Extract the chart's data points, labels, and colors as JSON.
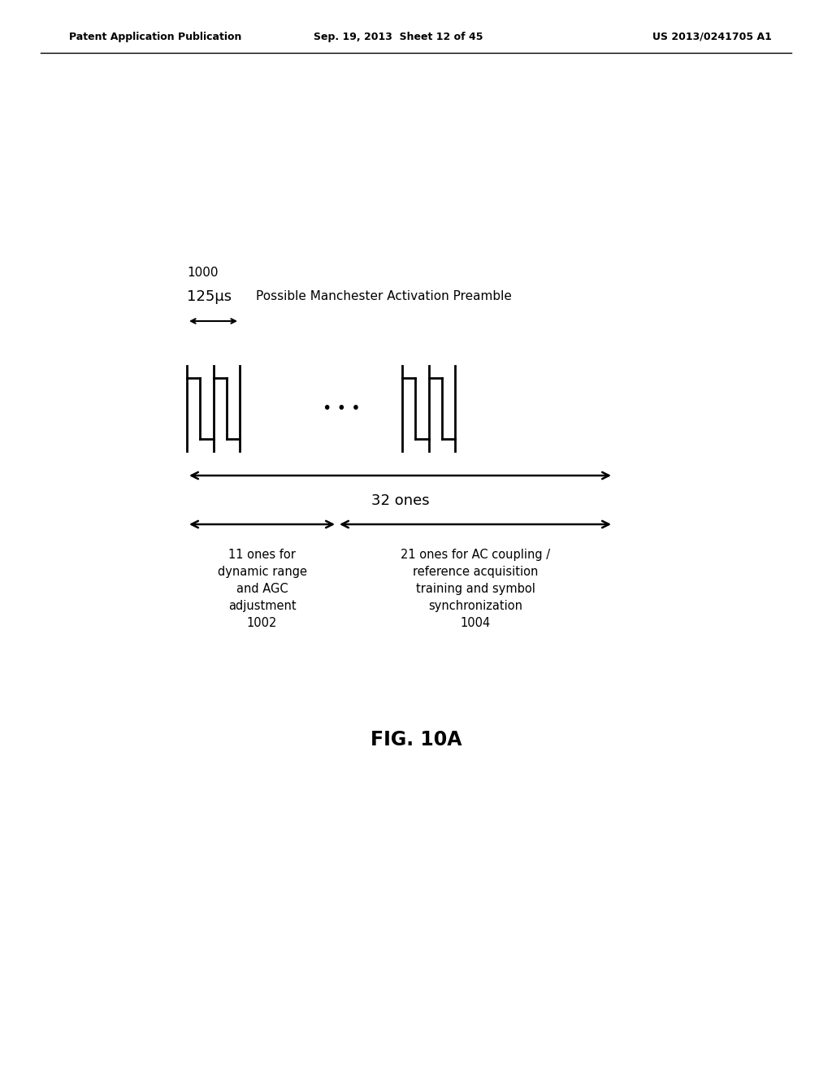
{
  "header_left": "Patent Application Publication",
  "header_center": "Sep. 19, 2013  Sheet 12 of 45",
  "header_right": "US 2013/0241705 A1",
  "label_1000": "1000",
  "label_125us": "125μs",
  "label_preamble": "Possible Manchester Activation Preamble",
  "label_32ones": "32 ones",
  "label_11ones": "11 ones for\ndynamic range\nand AGC\nadjustment\n1002",
  "label_21ones": "21 ones for AC coupling /\nreference acquisition\ntraining and symbol\nsynchronization\n1004",
  "figure_label": "FIG. 10A",
  "bg_color": "#ffffff",
  "line_color": "#000000"
}
